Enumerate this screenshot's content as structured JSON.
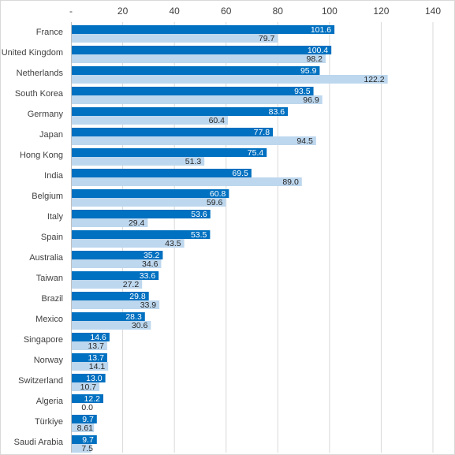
{
  "chart_data": {
    "type": "bar",
    "orientation": "horizontal",
    "title": "",
    "xlabel": "",
    "ylabel": "",
    "xlim": [
      0,
      140
    ],
    "x_ticks": [
      {
        "value": 0,
        "label": "-"
      },
      {
        "value": 20,
        "label": "20"
      },
      {
        "value": 40,
        "label": "40"
      },
      {
        "value": 60,
        "label": "60"
      },
      {
        "value": 80,
        "label": "80"
      },
      {
        "value": 100,
        "label": "100"
      },
      {
        "value": 120,
        "label": "120"
      },
      {
        "value": 140,
        "label": "140"
      }
    ],
    "x_axis_position": "top",
    "grid": true,
    "legend": "none",
    "categories": [
      "France",
      "United Kingdom",
      "Netherlands",
      "South Korea",
      "Germany",
      "Japan",
      "Hong Kong",
      "India",
      "Belgium",
      "Italy",
      "Spain",
      "Australia",
      "Taiwan",
      "Brazil",
      "Mexico",
      "Singapore",
      "Norway",
      "Switzerland",
      "Algeria",
      "Türkiye",
      "Saudi Arabia"
    ],
    "series": [
      {
        "color": "#0070c0",
        "values": [
          101.6,
          100.4,
          95.9,
          93.5,
          83.6,
          77.8,
          75.4,
          69.5,
          60.8,
          53.6,
          53.5,
          35.2,
          33.6,
          29.8,
          28.3,
          14.6,
          13.7,
          13.0,
          12.2,
          9.7,
          9.7
        ],
        "labels": [
          "101.6",
          "100.4",
          "95.9",
          "93.5",
          "83.6",
          "77.8",
          "75.4",
          "69.5",
          "60.8",
          "53.6",
          "53.5",
          "35.2",
          "33.6",
          "29.8",
          "28.3",
          "14.6",
          "13.7",
          "13.0",
          "12.2",
          "9.7",
          "9.7"
        ]
      },
      {
        "color": "#bdd7ee",
        "values": [
          79.7,
          98.2,
          122.2,
          96.9,
          60.4,
          94.5,
          51.3,
          89.0,
          59.6,
          29.4,
          43.5,
          34.6,
          27.2,
          33.9,
          30.6,
          13.7,
          14.1,
          10.7,
          0.0,
          8.61,
          7.5
        ],
        "labels": [
          "79.7",
          "98.2",
          "122.2",
          "96.9",
          "60.4",
          "94.5",
          "51.3",
          "89.0",
          "59.6",
          "29.4",
          "43.5",
          "34.6",
          "27.2",
          "33.9",
          "30.6",
          "13.7",
          "14.1",
          "10.7",
          "0.0",
          "8.61",
          "7.5"
        ]
      }
    ]
  }
}
